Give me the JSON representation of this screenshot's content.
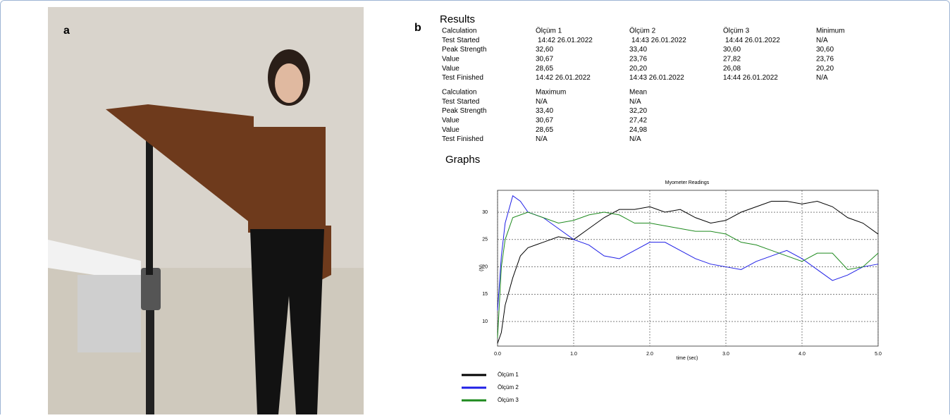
{
  "panel_a": {
    "label": "a"
  },
  "panel_b": {
    "label": "b",
    "results_title": "Results",
    "graphs_title": "Graphs",
    "table1": {
      "rows": [
        [
          "Calculation",
          "Ölçüm 1",
          "Ölçüm 2",
          "Ölçüm 3",
          "Minimum"
        ],
        [
          "Test Started",
          "14:42  26.01.2022",
          "14:43  26.01.2022",
          "14:44  26.01.2022",
          "N/A"
        ],
        [
          "Peak Strength",
          "32,60",
          "33,40",
          "30,60",
          "30,60"
        ],
        [
          "Value",
          "30,67",
          "23,76",
          "27,82",
          "23,76"
        ],
        [
          "Value",
          "28,65",
          "20,20",
          "26,08",
          "20,20"
        ],
        [
          "Test Finished",
          "14:42  26.01.2022",
          "14:43  26.01.2022",
          "14:44  26.01.2022",
          "N/A"
        ]
      ]
    },
    "table2": {
      "rows": [
        [
          "Calculation",
          "Maximum",
          "Mean"
        ],
        [
          "Test Started",
          "N/A",
          "N/A"
        ],
        [
          "Peak Strength",
          "33,40",
          "32,20"
        ],
        [
          "Value",
          "30,67",
          "27,42"
        ],
        [
          "Value",
          "28,65",
          "24,98"
        ],
        [
          "Test Finished",
          "N/A",
          "N/A"
        ]
      ]
    }
  },
  "chart_data": {
    "type": "line",
    "title": "Myometer Readings",
    "x_label": "time (sec)",
    "y_label": "(N)",
    "x": [
      0,
      0.05,
      0.1,
      0.2,
      0.3,
      0.4,
      0.6,
      0.8,
      1.0,
      1.2,
      1.4,
      1.6,
      1.8,
      2.0,
      2.2,
      2.4,
      2.6,
      2.8,
      3.0,
      3.2,
      3.4,
      3.6,
      3.8,
      4.0,
      4.2,
      4.4,
      4.6,
      4.8,
      5.0
    ],
    "series": [
      {
        "name": "Ölçüm 1",
        "color": "#000000",
        "values": [
          6,
          8,
          13,
          18,
          22,
          23.5,
          24.5,
          25.5,
          25,
          27,
          29,
          30.5,
          30.5,
          31,
          30,
          30.5,
          29,
          28,
          28.5,
          30,
          31,
          32,
          32,
          31.5,
          32,
          31,
          29,
          28,
          26
        ]
      },
      {
        "name": "Ölçüm 2",
        "color": "#1f1fe6",
        "values": [
          12,
          22,
          28,
          33,
          32,
          30,
          29,
          27,
          25,
          24,
          22,
          21.5,
          23,
          24.5,
          24.5,
          23,
          21.5,
          20.5,
          20,
          19.5,
          21,
          22,
          23,
          21.5,
          19.5,
          17.5,
          18.5,
          20,
          20.5
        ]
      },
      {
        "name": "Ölçüm 3",
        "color": "#1e8a1e",
        "values": [
          7,
          20,
          25,
          29,
          29.5,
          30,
          29,
          28,
          28.5,
          29.5,
          30,
          29.5,
          28,
          28,
          27.5,
          27,
          26.5,
          26.5,
          26,
          24.5,
          24,
          23,
          22,
          21,
          22.5,
          22.5,
          19.5,
          20,
          22.5
        ]
      }
    ],
    "xlim": [
      0,
      5
    ],
    "ylim": [
      5.5,
      34
    ],
    "xticks": [
      {
        "value": 0,
        "label": "0.0"
      },
      {
        "value": 1,
        "label": "1.0"
      },
      {
        "value": 2,
        "label": "2.0"
      },
      {
        "value": 3,
        "label": "3.0"
      },
      {
        "value": 4,
        "label": "4.0"
      },
      {
        "value": 5,
        "label": "5.0"
      }
    ],
    "yticks": [
      10,
      15,
      20,
      25,
      30
    ],
    "grid": true
  }
}
